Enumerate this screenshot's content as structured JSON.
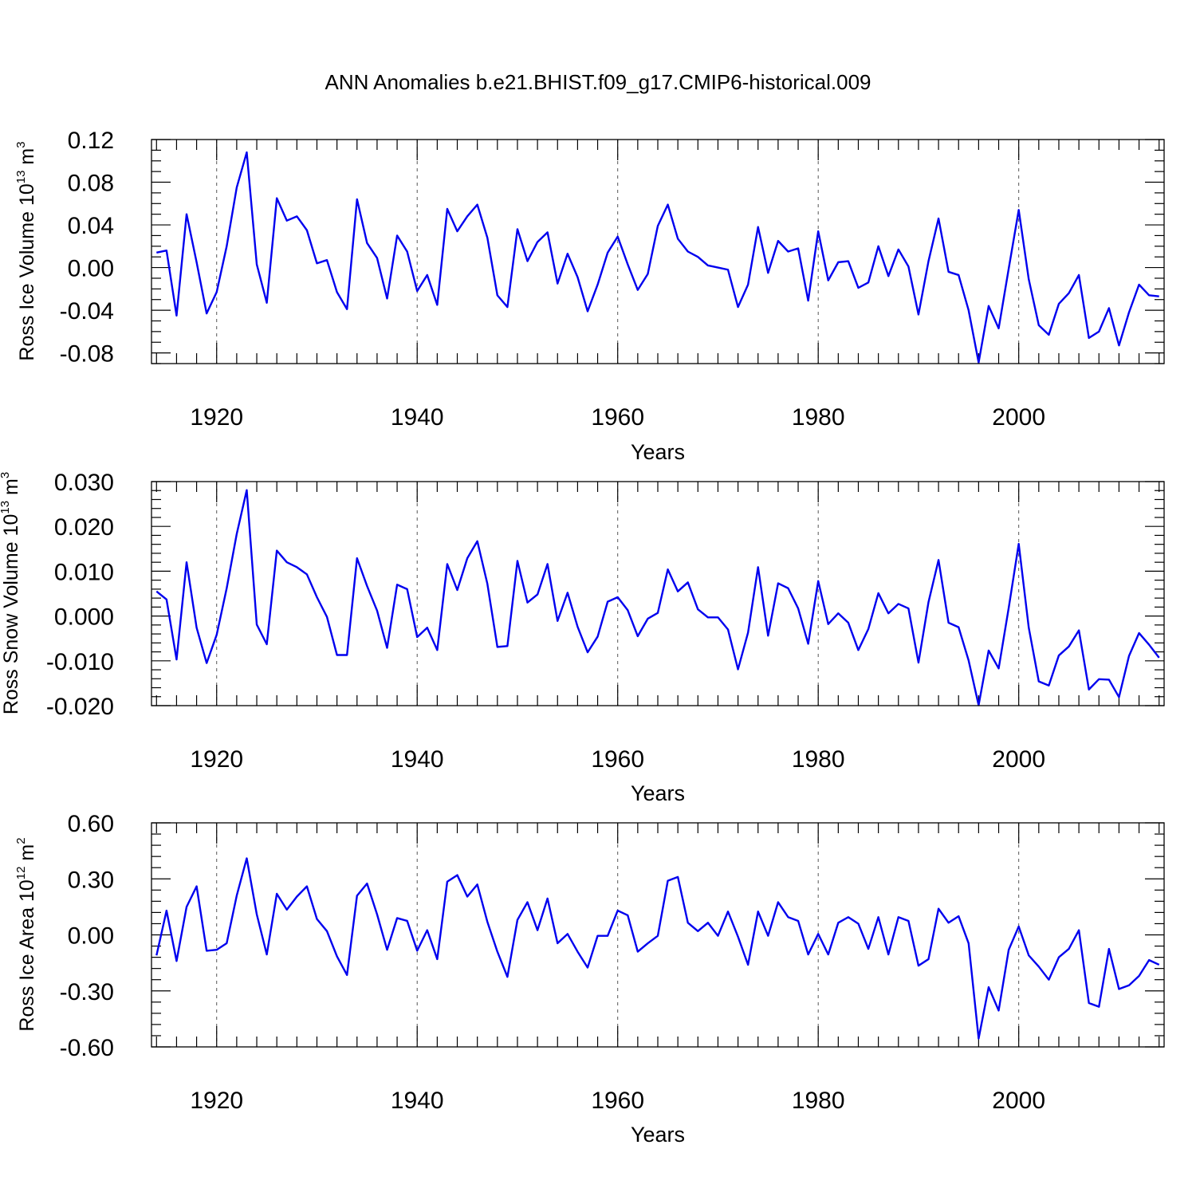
{
  "chart_data": {
    "title": "ANN Anomalies b.e21.BHIST.f09_g17.CMIP6-historical.009",
    "type": "line",
    "shared_x": {
      "start_year": 1914,
      "end_year": 2014,
      "xlim": [
        1913.5,
        2014.5
      ],
      "major_ticks": [
        1920,
        1940,
        1960,
        1980,
        2000
      ],
      "grid_years": [
        1920,
        1940,
        1960,
        1980,
        2000
      ]
    },
    "panels": [
      {
        "id": "ice-volume",
        "xlabel": "Years",
        "ylabel": "Ross Ice Volume 10",
        "ylabel_exp": "13",
        "ylabel_unit": " m",
        "ylabel_unit_exp": "3",
        "ylim": [
          -0.09,
          0.12
        ],
        "ytick_values": [
          0.12,
          0.08,
          0.04,
          0.0,
          -0.04,
          -0.08
        ],
        "ytick_labels": [
          "0.12",
          "0.08",
          "0.04",
          "0.00",
          "-0.04",
          "-0.08"
        ],
        "minor_step": 0.01,
        "series": {
          "name": "Ross Ice Volume",
          "color": "#0000ee",
          "values": [
            0.014,
            0.016,
            -0.045,
            0.05,
            0.005,
            -0.043,
            -0.023,
            0.02,
            0.075,
            0.108,
            0.003,
            -0.033,
            0.065,
            0.044,
            0.048,
            0.035,
            0.004,
            0.007,
            -0.023,
            -0.039,
            0.064,
            0.023,
            0.009,
            -0.029,
            0.03,
            0.015,
            -0.022,
            -0.007,
            -0.035,
            0.055,
            0.034,
            0.048,
            0.059,
            0.028,
            -0.026,
            -0.037,
            0.036,
            0.006,
            0.024,
            0.033,
            -0.015,
            0.013,
            -0.009,
            -0.041,
            -0.016,
            0.014,
            0.029,
            0.003,
            -0.021,
            -0.006,
            0.039,
            0.059,
            0.027,
            0.015,
            0.01,
            0.002,
            0.0,
            -0.002,
            -0.037,
            -0.016,
            0.038,
            -0.005,
            0.025,
            0.015,
            0.018,
            -0.031,
            0.034,
            -0.012,
            0.005,
            0.006,
            -0.019,
            -0.014,
            0.02,
            -0.008,
            0.017,
            0.001,
            -0.044,
            0.006,
            0.046,
            -0.004,
            -0.007,
            -0.04,
            -0.089,
            -0.036,
            -0.057,
            -0.001,
            0.054,
            -0.011,
            -0.054,
            -0.063,
            -0.034,
            -0.024,
            -0.007,
            -0.066,
            -0.06,
            -0.038,
            -0.073,
            -0.042,
            -0.016,
            -0.026,
            -0.027
          ]
        }
      },
      {
        "id": "snow-volume",
        "xlabel": "Years",
        "ylabel": "Ross Snow Volume 10",
        "ylabel_exp": "13",
        "ylabel_unit": " m",
        "ylabel_unit_exp": "3",
        "ylim": [
          -0.02,
          0.03
        ],
        "ytick_values": [
          0.03,
          0.02,
          0.01,
          0.0,
          -0.01,
          -0.02
        ],
        "ytick_labels": [
          "0.030",
          "0.020",
          "0.010",
          "0.000",
          "-0.010",
          "-0.020"
        ],
        "minor_step": 0.002,
        "series": {
          "name": "Ross Snow Volume",
          "color": "#0000ee",
          "values": [
            0.0055,
            0.0037,
            -0.0097,
            0.012,
            -0.0026,
            -0.0105,
            -0.0042,
            0.0062,
            0.0183,
            0.0281,
            -0.0019,
            -0.0063,
            0.0146,
            0.012,
            0.0109,
            0.0093,
            0.0042,
            -0.0002,
            -0.0087,
            -0.0087,
            0.0129,
            0.0067,
            0.0012,
            -0.0071,
            0.007,
            0.006,
            -0.0047,
            -0.0026,
            -0.0076,
            0.0116,
            0.0058,
            0.0129,
            0.0167,
            0.0072,
            -0.0069,
            -0.0067,
            0.0123,
            0.003,
            0.0048,
            0.0116,
            -0.0011,
            0.0052,
            -0.0024,
            -0.0081,
            -0.0046,
            0.0032,
            0.0042,
            0.0013,
            -0.0045,
            -0.0006,
            0.0007,
            0.0104,
            0.0055,
            0.0075,
            0.0015,
            -0.0003,
            -0.0003,
            -0.003,
            -0.0119,
            -0.0037,
            0.0109,
            -0.0044,
            0.0073,
            0.0062,
            0.0017,
            -0.0062,
            0.0078,
            -0.0018,
            0.0006,
            -0.0015,
            -0.0076,
            -0.0029,
            0.0051,
            0.0006,
            0.0027,
            0.0017,
            -0.0104,
            0.0031,
            0.0125,
            -0.0015,
            -0.0025,
            -0.0099,
            -0.0199,
            -0.0077,
            -0.0117,
            0.0018,
            0.0161,
            -0.0026,
            -0.0146,
            -0.0155,
            -0.0088,
            -0.0068,
            -0.0032,
            -0.0164,
            -0.0141,
            -0.0142,
            -0.0181,
            -0.0089,
            -0.0038,
            -0.0064,
            -0.0093
          ]
        }
      },
      {
        "id": "ice-area",
        "xlabel": "Years",
        "ylabel": "Ross Ice Area 10",
        "ylabel_exp": "12",
        "ylabel_unit": " m",
        "ylabel_unit_exp": "2",
        "ylim": [
          -0.6,
          0.6
        ],
        "ytick_values": [
          0.6,
          0.3,
          0.0,
          -0.3,
          -0.6
        ],
        "ytick_labels": [
          "0.60",
          "0.30",
          "0.00",
          "-0.30",
          "-0.60"
        ],
        "minor_step": 0.06,
        "series": {
          "name": "Ross Ice Area",
          "color": "#0000ee",
          "values": [
            -0.11,
            0.13,
            -0.14,
            0.15,
            0.26,
            -0.085,
            -0.08,
            -0.045,
            0.21,
            0.41,
            0.11,
            -0.105,
            0.22,
            0.135,
            0.205,
            0.26,
            0.085,
            0.02,
            -0.115,
            -0.215,
            0.21,
            0.275,
            0.11,
            -0.08,
            0.09,
            0.075,
            -0.085,
            0.025,
            -0.13,
            0.285,
            0.32,
            0.205,
            0.27,
            0.07,
            -0.09,
            -0.225,
            0.08,
            0.175,
            0.025,
            0.195,
            -0.045,
            0.005,
            -0.09,
            -0.175,
            -0.005,
            -0.005,
            0.13,
            0.105,
            -0.09,
            -0.045,
            -0.005,
            0.29,
            0.31,
            0.065,
            0.02,
            0.065,
            -0.005,
            0.125,
            -0.01,
            -0.16,
            0.125,
            -0.005,
            0.175,
            0.095,
            0.075,
            -0.105,
            0.005,
            -0.105,
            0.065,
            0.095,
            0.06,
            -0.075,
            0.095,
            -0.105,
            0.095,
            0.075,
            -0.165,
            -0.13,
            0.14,
            0.065,
            0.1,
            -0.045,
            -0.555,
            -0.28,
            -0.405,
            -0.08,
            0.045,
            -0.11,
            -0.17,
            -0.24,
            -0.12,
            -0.075,
            0.025,
            -0.365,
            -0.385,
            -0.075,
            -0.29,
            -0.27,
            -0.22,
            -0.135,
            -0.16
          ]
        }
      }
    ]
  }
}
